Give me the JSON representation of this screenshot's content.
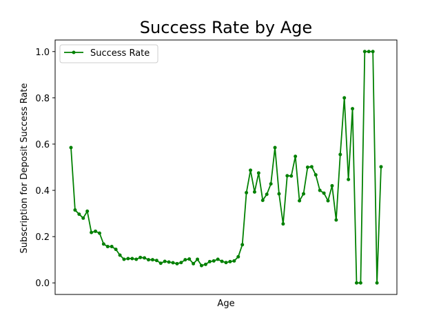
{
  "chart_data": {
    "type": "line",
    "title": "Success Rate by Age",
    "xlabel": "Age",
    "ylabel": "Subscription for Deposit Success Rate",
    "ylim": [
      -0.05,
      1.05
    ],
    "y_ticks": [
      "0.0",
      "0.2",
      "0.4",
      "0.6",
      "0.8",
      "1.0"
    ],
    "x_ticks_shown": false,
    "grid": false,
    "legend_position": "top-left",
    "series": [
      {
        "name": "Success Rate",
        "color": "#008000",
        "marker": "circle",
        "values": [
          0.585,
          0.315,
          0.297,
          0.28,
          0.31,
          0.218,
          0.223,
          0.215,
          0.168,
          0.157,
          0.157,
          0.145,
          0.12,
          0.102,
          0.105,
          0.105,
          0.102,
          0.11,
          0.108,
          0.1,
          0.1,
          0.097,
          0.085,
          0.093,
          0.09,
          0.087,
          0.083,
          0.088,
          0.1,
          0.103,
          0.083,
          0.102,
          0.075,
          0.08,
          0.092,
          0.095,
          0.102,
          0.093,
          0.088,
          0.092,
          0.095,
          0.113,
          0.165,
          0.39,
          0.487,
          0.393,
          0.475,
          0.357,
          0.383,
          0.428,
          0.585,
          0.385,
          0.255,
          0.463,
          0.462,
          0.547,
          0.355,
          0.385,
          0.5,
          0.502,
          0.467,
          0.4,
          0.388,
          0.355,
          0.42,
          0.272,
          0.555,
          0.8,
          0.447,
          0.753,
          0.0,
          0.0,
          1.0,
          1.0,
          1.0,
          0.0,
          0.502
        ]
      }
    ]
  }
}
